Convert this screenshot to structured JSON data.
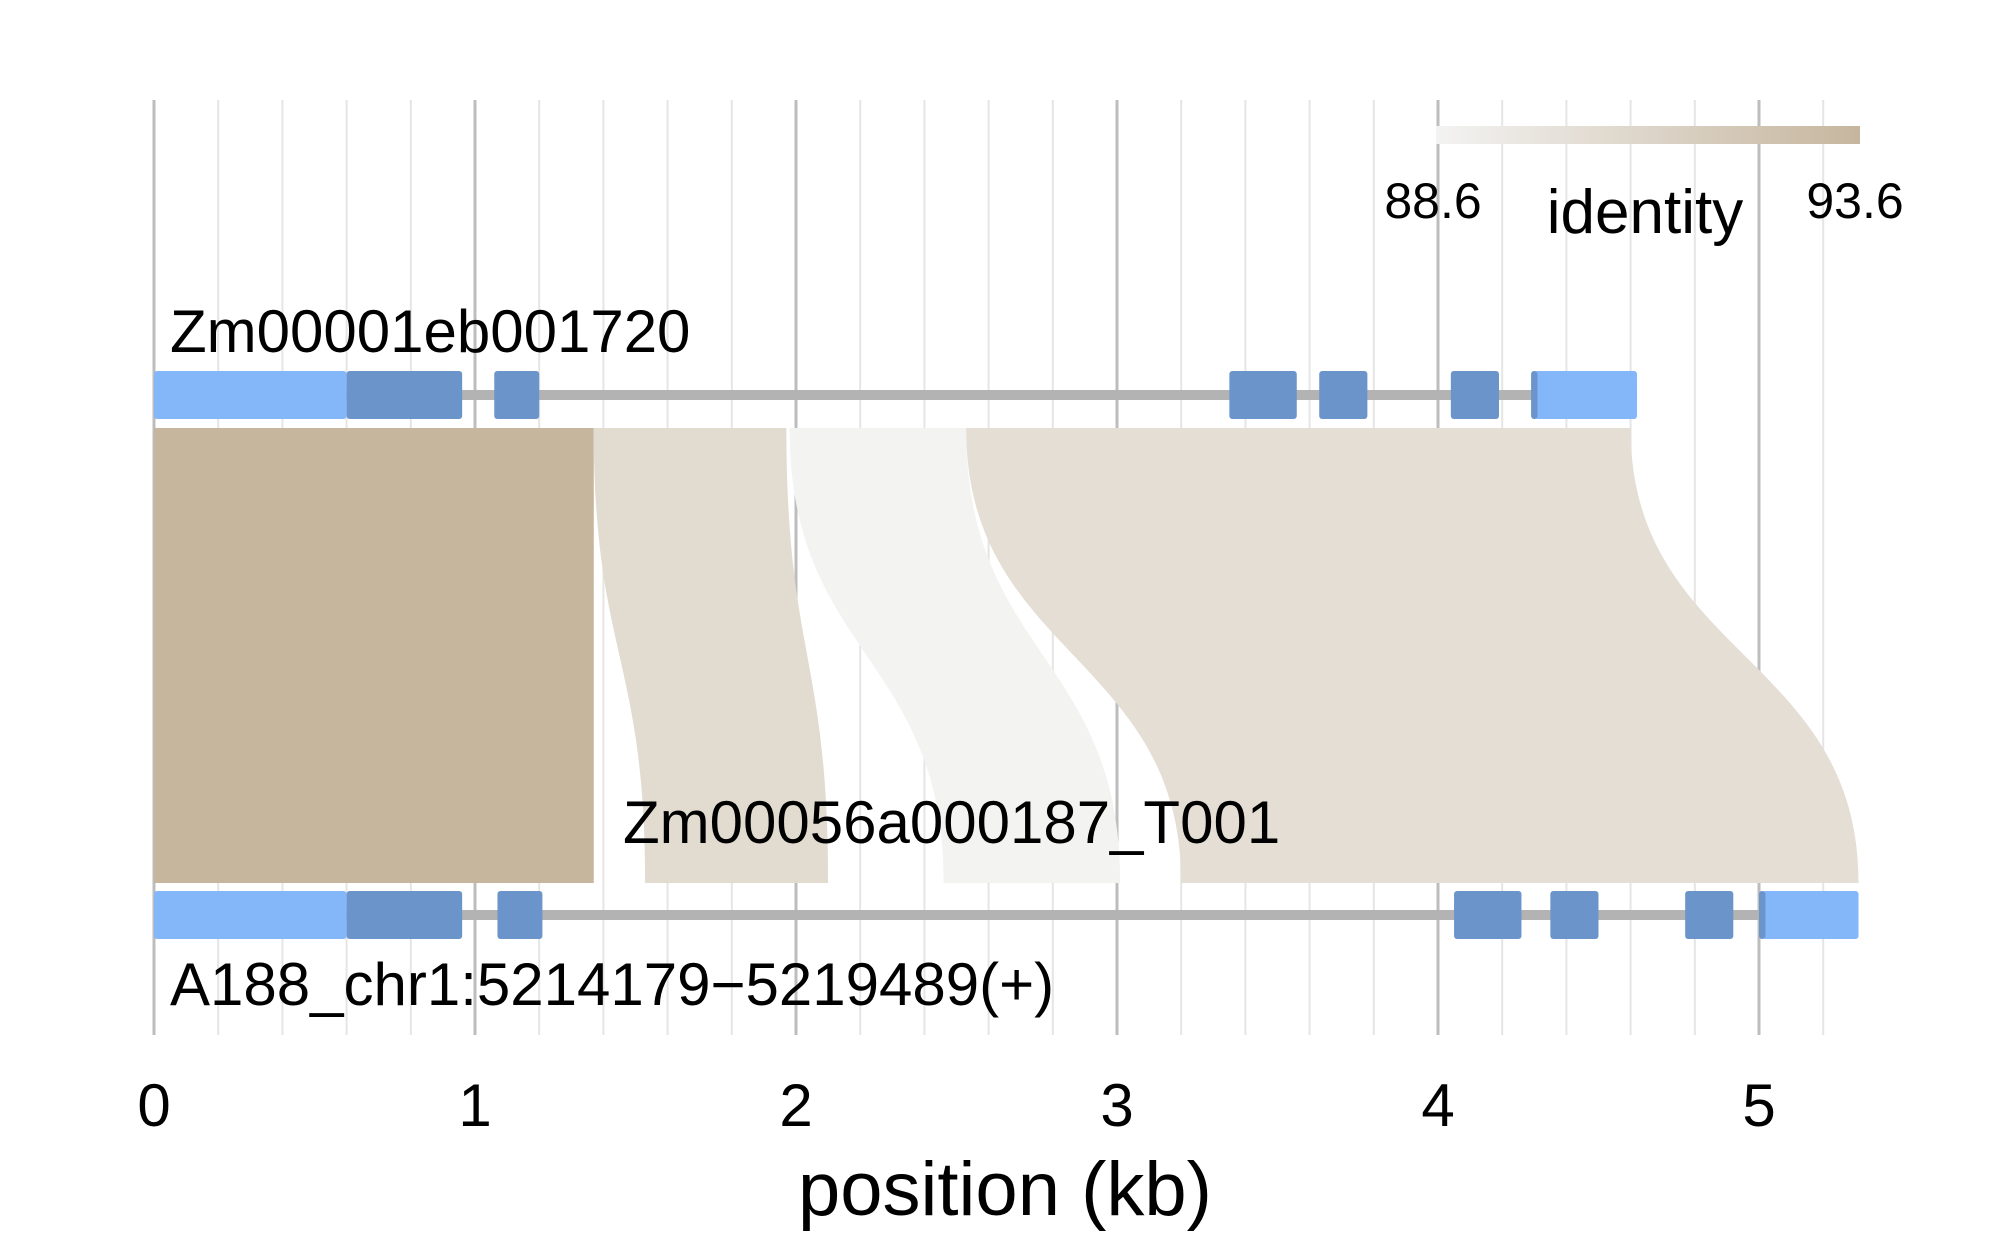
{
  "top_track": {
    "label": "Zm00001eb001720",
    "span_kb": [
      0,
      4.62
    ],
    "utr": [
      [
        0,
        0.6
      ],
      [
        4.3,
        4.62
      ]
    ],
    "cds": [
      [
        0.6,
        0.96
      ],
      [
        1.06,
        1.2
      ],
      [
        3.35,
        3.56
      ],
      [
        3.63,
        3.78
      ],
      [
        4.04,
        4.19
      ],
      [
        4.29,
        4.31
      ]
    ]
  },
  "bottom_track": {
    "label": "A188_chr1:5214179−5219489(+)",
    "annotation_label": "Zm00056a000187_T001",
    "span_kb": [
      0,
      5.31
    ],
    "utr": [
      [
        0,
        0.6
      ],
      [
        5.01,
        5.31
      ]
    ],
    "cds": [
      [
        0.6,
        0.96
      ],
      [
        1.07,
        1.21
      ],
      [
        4.05,
        4.26
      ],
      [
        4.35,
        4.5
      ],
      [
        4.77,
        4.92
      ],
      [
        5.0,
        5.02
      ]
    ]
  },
  "alignments": [
    {
      "top": [
        0,
        1.37
      ],
      "bottom": [
        0,
        1.37
      ],
      "identity": 93.6
    },
    {
      "top": [
        1.37,
        1.97
      ],
      "bottom": [
        1.53,
        2.1
      ],
      "identity": 90.6
    },
    {
      "top": [
        1.98,
        2.53
      ],
      "bottom": [
        2.46,
        3.01
      ],
      "identity": 88.6
    },
    {
      "top": [
        2.53,
        4.6
      ],
      "bottom": [
        3.2,
        5.31
      ],
      "identity": 90.3
    }
  ],
  "legend": {
    "title": "identity",
    "min_label": "88.6",
    "max_label": "93.6",
    "min_value": 88.6,
    "max_value": 93.6,
    "color_low": "#f3f3f2",
    "color_high": "#c6b69e"
  },
  "axis": {
    "title": "position (kb)",
    "range_kb": [
      0,
      5.31
    ],
    "ticks": [
      "0",
      "1",
      "2",
      "3",
      "4",
      "5"
    ]
  },
  "colors": {
    "utr": "#84b6fa",
    "cds": "#6b94cb",
    "backbone": "#b3b3b3",
    "major_grid": "#bdbdbd",
    "minor_grid": "#e5e5e5"
  }
}
